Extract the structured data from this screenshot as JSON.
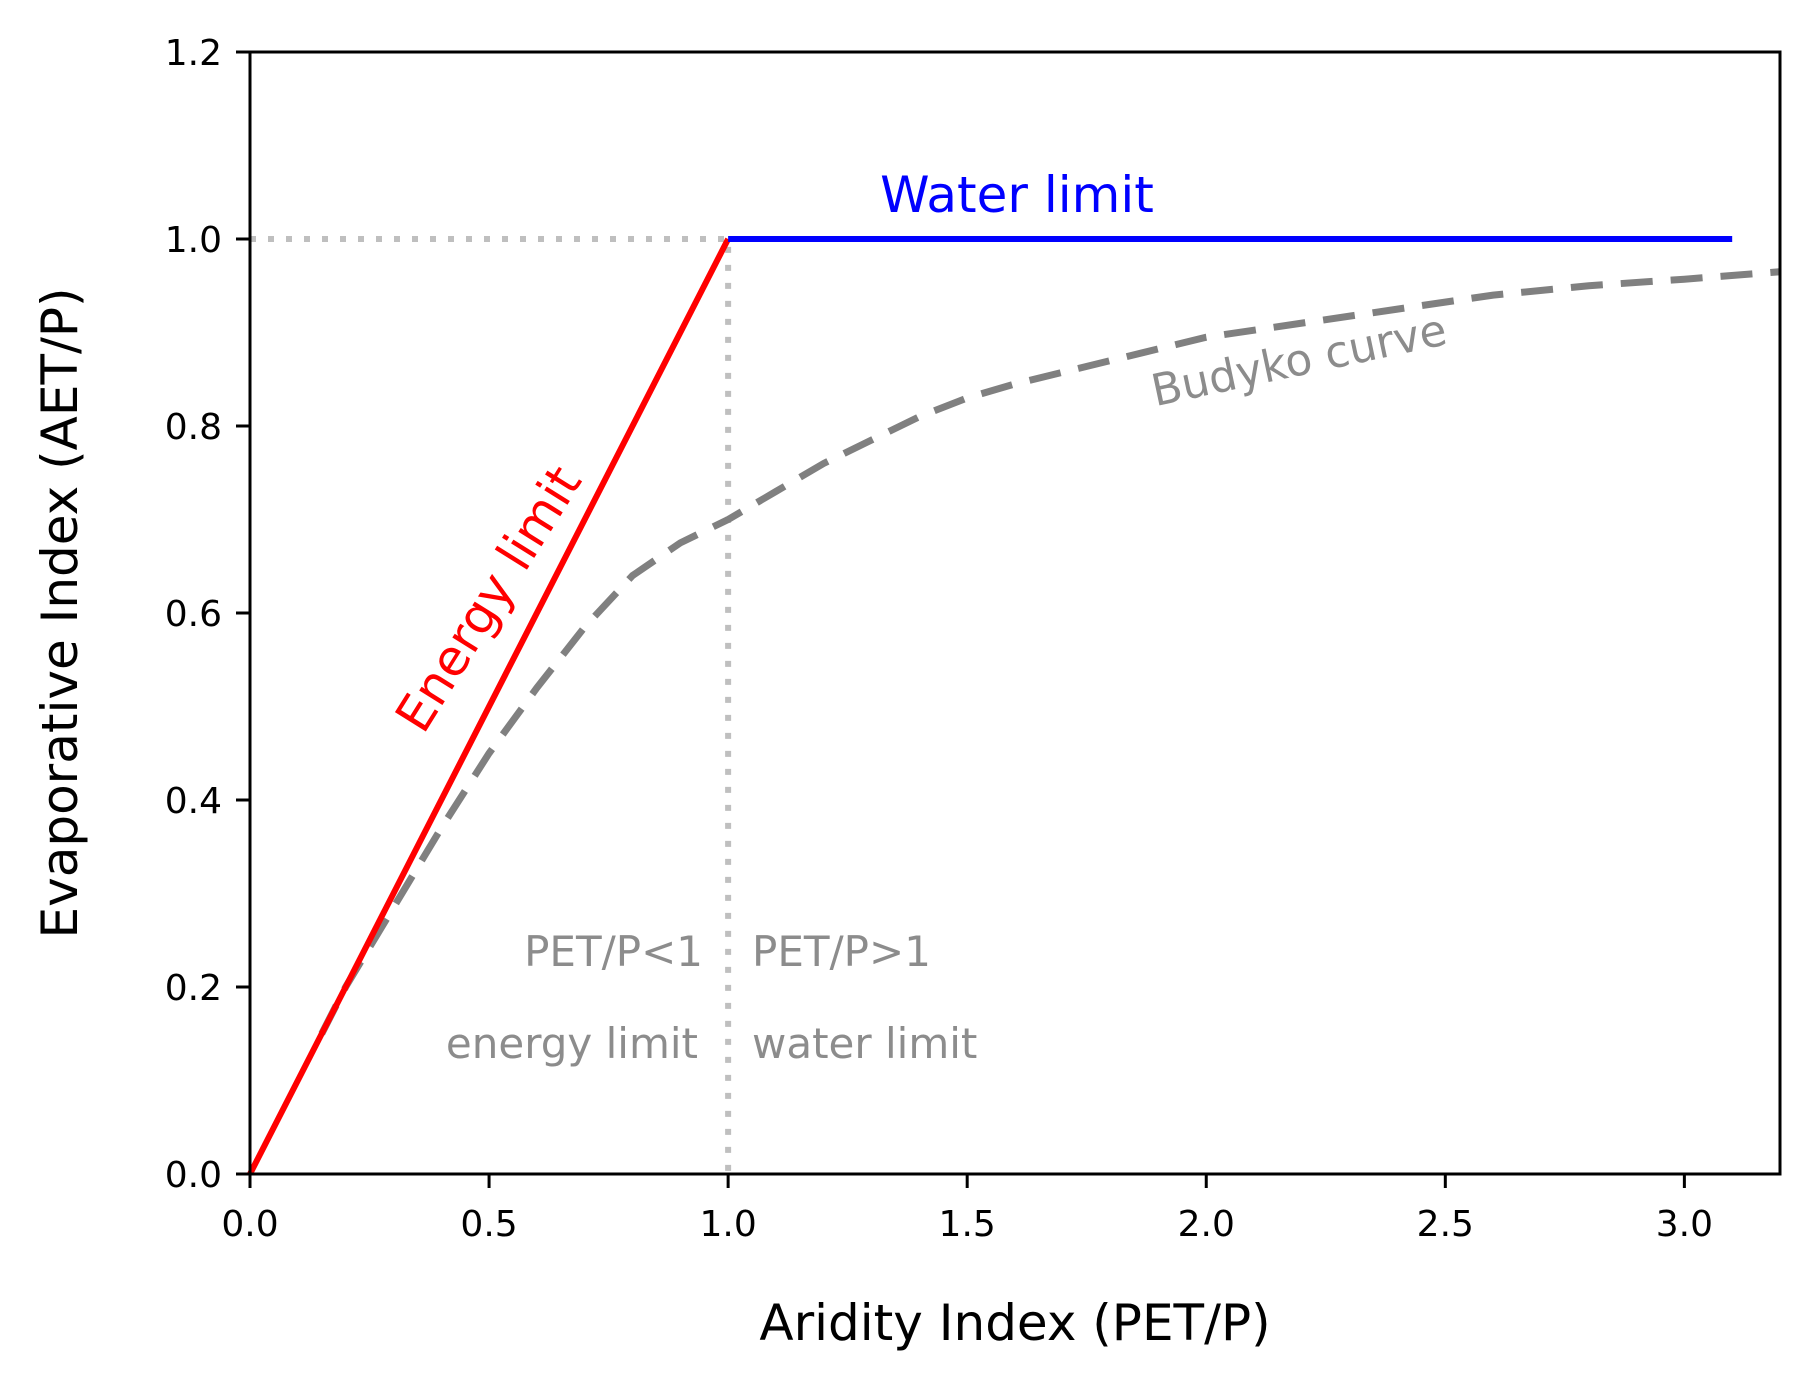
{
  "chart_data": {
    "type": "line",
    "xlabel": "Aridity Index (PET/P)",
    "ylabel": "Evaporative Index (AET/P)",
    "xlim": [
      0.0,
      3.2
    ],
    "ylim": [
      0.0,
      1.2
    ],
    "grid": false,
    "xticks": [
      "0.0",
      "0.5",
      "1.0",
      "1.5",
      "2.0",
      "2.5",
      "3.0"
    ],
    "yticks": [
      "0.0",
      "0.2",
      "0.4",
      "0.6",
      "0.8",
      "1.0",
      "1.2"
    ],
    "series": [
      {
        "name": "Energy limit",
        "style": "solid",
        "color": "#ff0000",
        "x": [
          0.0,
          1.0
        ],
        "y": [
          0.0,
          1.0
        ]
      },
      {
        "name": "Water limit",
        "style": "solid",
        "color": "#0000ff",
        "x": [
          1.0,
          3.1
        ],
        "y": [
          1.0,
          1.0
        ]
      },
      {
        "name": "Budyko curve",
        "style": "dashed",
        "color": "#808080",
        "x": [
          0.15,
          0.2,
          0.3,
          0.4,
          0.5,
          0.6,
          0.7,
          0.8,
          0.9,
          1.0,
          1.1,
          1.2,
          1.3,
          1.4,
          1.5,
          1.6,
          1.8,
          2.0,
          2.2,
          2.4,
          2.6,
          2.8,
          3.0,
          3.2
        ],
        "y": [
          0.15,
          0.2,
          0.285,
          0.37,
          0.45,
          0.52,
          0.585,
          0.64,
          0.675,
          0.7,
          0.73,
          0.76,
          0.785,
          0.81,
          0.83,
          0.845,
          0.87,
          0.895,
          0.91,
          0.925,
          0.94,
          0.95,
          0.957,
          0.965
        ]
      },
      {
        "name": "reference lines",
        "style": "dotted",
        "color": "#bfbfbf",
        "x": [
          0.0,
          1.0,
          1.0
        ],
        "y": [
          1.0,
          1.0,
          0.0
        ]
      }
    ],
    "annotations": {
      "water_limit": "Water limit",
      "energy_limit": "Energy limit",
      "budyko_curve": "Budyko curve",
      "pet_lt": "PET/P<1",
      "pet_gt": "PET/P>1",
      "energy_limit_region": "energy limit",
      "water_limit_region": "water limit"
    },
    "colors": {
      "energy": "#ff0000",
      "water": "#0000ff",
      "budyko": "#808080",
      "reference": "#bfbfbf",
      "annotation_gray": "#8c8c8c"
    }
  }
}
